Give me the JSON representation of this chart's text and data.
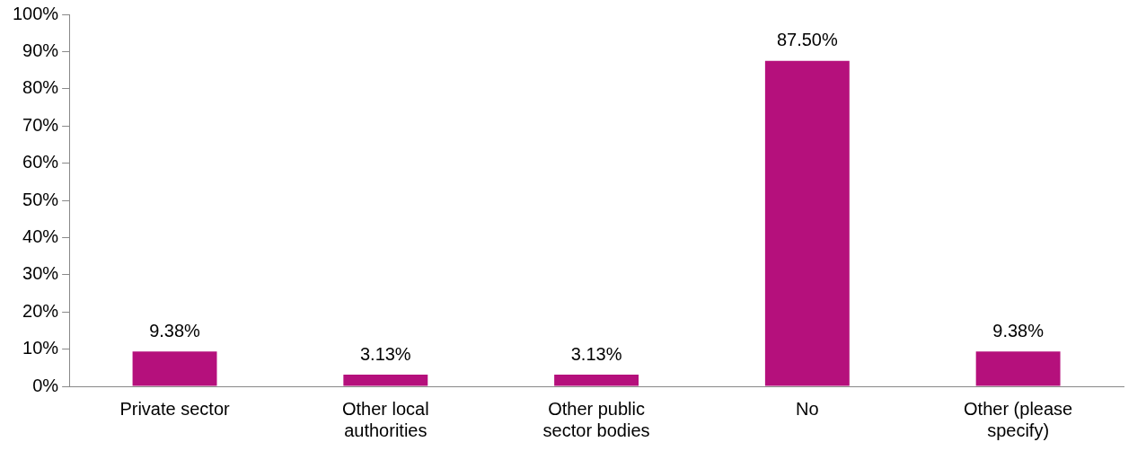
{
  "chart_data": {
    "type": "bar",
    "categories": [
      "Private sector",
      "Other local authorities",
      "Other public sector bodies",
      "No",
      "Other (please specify)"
    ],
    "values": [
      9.38,
      3.13,
      3.13,
      87.5,
      9.38
    ],
    "value_labels": [
      "9.38%",
      "3.13%",
      "3.13%",
      "87.50%",
      "9.38%"
    ],
    "color": "#b5107c",
    "ylim": [
      0,
      100
    ],
    "yticks": [
      {
        "value": 0,
        "label": "0%"
      },
      {
        "value": 10,
        "label": "10%"
      },
      {
        "value": 20,
        "label": "20%"
      },
      {
        "value": 30,
        "label": "30%"
      },
      {
        "value": 40,
        "label": "40%"
      },
      {
        "value": 50,
        "label": "50%"
      },
      {
        "value": 60,
        "label": "60%"
      },
      {
        "value": 70,
        "label": "70%"
      },
      {
        "value": 80,
        "label": "80%"
      },
      {
        "value": 90,
        "label": "90%"
      },
      {
        "value": 100,
        "label": "100%"
      }
    ],
    "grid": false,
    "legend": false
  }
}
